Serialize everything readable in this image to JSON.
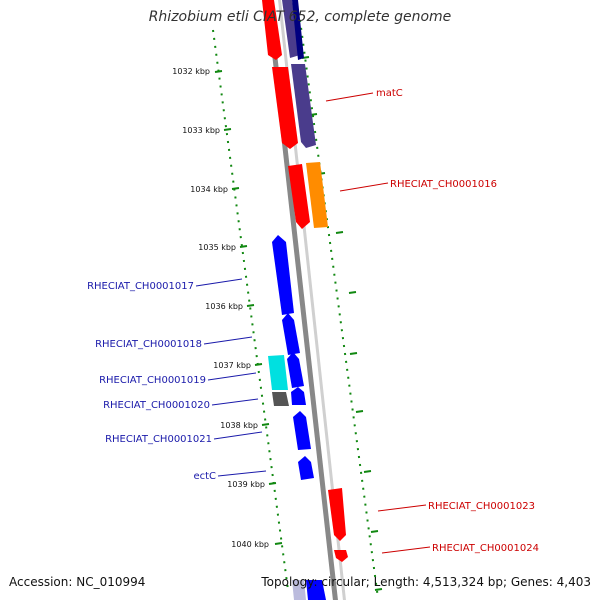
{
  "title": "Rhizobium etli CIAT 652, complete genome",
  "accession": "Accession: NC_010994",
  "summary": "Topology: circular; Length: 4,513,324 bp; Genes: 4,403",
  "colors": {
    "forward": "#ff0000",
    "forward_alt": "#ff8c00",
    "reverse": "#0000ff",
    "reverse_alt": "#4a3c8c",
    "other_cyan": "#00e0e0",
    "other_grey": "#555555",
    "backbone": "#888888",
    "tick_green": "#118811",
    "label_red": "#cc0000",
    "label_blue": "#1a1aaa"
  },
  "scale_ticks": [
    "1032 kbp",
    "1033 kbp",
    "1034 kbp",
    "1035 kbp",
    "1036 kbp",
    "1037 kbp",
    "1038 kbp",
    "1039 kbp",
    "1040 kbp"
  ],
  "gene_labels": [
    {
      "text": "matC",
      "side": "right",
      "color": "red"
    },
    {
      "text": "RHECIAT_CH0001016",
      "side": "right",
      "color": "red"
    },
    {
      "text": "RHECIAT_CH0001017",
      "side": "left",
      "color": "blue"
    },
    {
      "text": "RHECIAT_CH0001018",
      "side": "left",
      "color": "blue"
    },
    {
      "text": "RHECIAT_CH0001019",
      "side": "left",
      "color": "blue"
    },
    {
      "text": "RHECIAT_CH0001020",
      "side": "left",
      "color": "blue"
    },
    {
      "text": "RHECIAT_CH0001021",
      "side": "left",
      "color": "blue"
    },
    {
      "text": "ectC",
      "side": "left",
      "color": "blue"
    },
    {
      "text": "RHECIAT_CH0001023",
      "side": "right",
      "color": "red"
    },
    {
      "text": "RHECIAT_CH0001024",
      "side": "right",
      "color": "red"
    }
  ]
}
